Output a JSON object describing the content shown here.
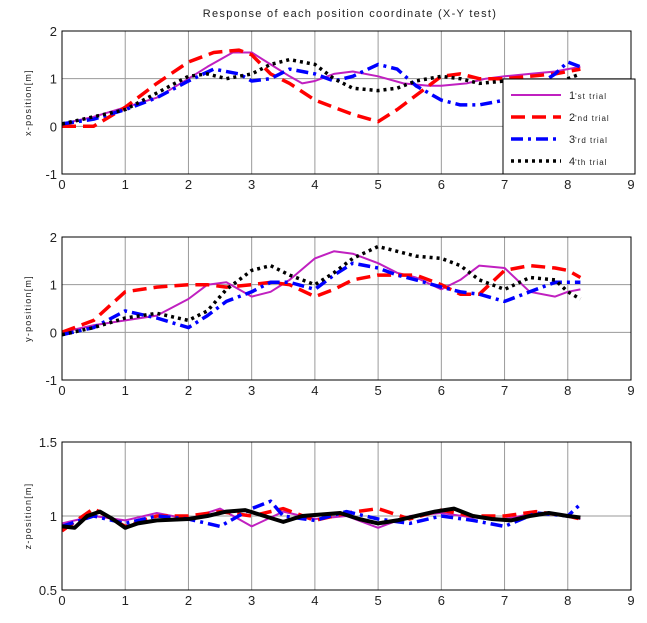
{
  "chart_data": [
    {
      "type": "line",
      "title": "Response of each position coordinate (X-Y test)",
      "ylabel": "x-position[m]",
      "xlim": [
        0,
        9
      ],
      "ylim": [
        -1,
        2
      ],
      "xticks": [
        0,
        1,
        2,
        3,
        4,
        5,
        6,
        7,
        8,
        9
      ],
      "yticks": [
        -1,
        0,
        1,
        2
      ],
      "grid": true,
      "legend": {
        "placement": "right",
        "entries": [
          {
            "main": "1",
            "sub": "'st trial"
          },
          {
            "main": "2",
            "sub": "'nd trial"
          },
          {
            "main": "3",
            "sub": "'rd trial"
          },
          {
            "main": "4",
            "sub": "'th trial"
          }
        ]
      },
      "series": [
        {
          "color": "#c020c0",
          "dash": "solid",
          "x": [
            0,
            0.5,
            1,
            1.5,
            2,
            2.3,
            2.7,
            3,
            3.3,
            3.6,
            3.8,
            4,
            4.3,
            4.6,
            5,
            5.4,
            5.8,
            6,
            6.4,
            6.7,
            7,
            7.4,
            7.8,
            8,
            8.2
          ],
          "y": [
            0.05,
            0.2,
            0.4,
            0.6,
            1.0,
            1.25,
            1.55,
            1.55,
            1.3,
            1.05,
            0.9,
            0.95,
            1.1,
            1.15,
            1.05,
            0.9,
            0.85,
            0.85,
            0.9,
            1.0,
            1.05,
            1.1,
            1.15,
            1.2,
            1.25
          ]
        },
        {
          "color": "#ff0000",
          "dash": "dash",
          "x": [
            0,
            0.5,
            1,
            1.5,
            2,
            2.4,
            2.8,
            3,
            3.3,
            3.6,
            4,
            4.3,
            4.6,
            5,
            5.3,
            5.7,
            6,
            6.3,
            6.6,
            7,
            7.4,
            7.8,
            8,
            8.2
          ],
          "y": [
            0.0,
            0.0,
            0.4,
            0.9,
            1.35,
            1.55,
            1.6,
            1.5,
            1.1,
            0.9,
            0.55,
            0.4,
            0.25,
            0.1,
            0.35,
            0.75,
            1.05,
            1.1,
            1.0,
            1.0,
            1.05,
            1.1,
            1.15,
            1.2
          ]
        },
        {
          "color": "#0000ff",
          "dash": "dashdot",
          "x": [
            0,
            0.5,
            1,
            1.5,
            2,
            2.4,
            2.8,
            3,
            3.3,
            3.6,
            4,
            4.3,
            4.6,
            5,
            5.3,
            5.6,
            6,
            6.3,
            6.6,
            7,
            7.4,
            7.8,
            8,
            8.2
          ],
          "y": [
            0.05,
            0.15,
            0.35,
            0.6,
            0.95,
            1.2,
            1.1,
            0.95,
            1.0,
            1.2,
            1.1,
            0.95,
            1.05,
            1.3,
            1.2,
            0.85,
            0.55,
            0.45,
            0.45,
            0.55,
            0.75,
            1.1,
            1.35,
            1.25
          ]
        },
        {
          "color": "#000000",
          "dash": "dot",
          "x": [
            0,
            0.5,
            1,
            1.5,
            2,
            2.3,
            2.6,
            3,
            3.3,
            3.6,
            4,
            4.3,
            4.6,
            5,
            5.3,
            5.6,
            6,
            6.3,
            6.6,
            7,
            7.4,
            7.8,
            8,
            8.2
          ],
          "y": [
            0.05,
            0.2,
            0.35,
            0.7,
            1.05,
            1.1,
            1.0,
            1.1,
            1.3,
            1.4,
            1.3,
            1.0,
            0.8,
            0.75,
            0.8,
            0.95,
            1.05,
            1.0,
            0.9,
            0.95,
            0.85,
            0.85,
            1.0,
            1.1
          ]
        }
      ]
    },
    {
      "type": "line",
      "ylabel": "y-position[m]",
      "xlim": [
        0,
        9
      ],
      "ylim": [
        -1,
        2
      ],
      "xticks": [
        0,
        1,
        2,
        3,
        4,
        5,
        6,
        7,
        8,
        9
      ],
      "yticks": [
        -1,
        0,
        1,
        2
      ],
      "grid": true,
      "series": [
        {
          "color": "#c020c0",
          "dash": "solid",
          "x": [
            0,
            0.5,
            1,
            1.5,
            2,
            2.3,
            2.6,
            3,
            3.3,
            3.6,
            4,
            4.3,
            4.6,
            5,
            5.3,
            5.6,
            6,
            6.3,
            6.6,
            7,
            7.4,
            7.8,
            8,
            8.2
          ],
          "y": [
            0.0,
            0.15,
            0.25,
            0.35,
            0.7,
            1.0,
            1.05,
            0.75,
            0.85,
            1.1,
            1.55,
            1.7,
            1.65,
            1.45,
            1.25,
            1.15,
            0.9,
            1.1,
            1.4,
            1.35,
            0.85,
            0.75,
            0.85,
            0.9
          ]
        },
        {
          "color": "#ff0000",
          "dash": "dash",
          "x": [
            0,
            0.5,
            1,
            1.5,
            2,
            2.3,
            2.6,
            3,
            3.3,
            3.6,
            4,
            4.3,
            4.6,
            5,
            5.3,
            5.6,
            6,
            6.3,
            6.6,
            7,
            7.4,
            7.8,
            8,
            8.2
          ],
          "y": [
            0.0,
            0.25,
            0.85,
            0.95,
            1.0,
            1.0,
            0.95,
            1.0,
            1.05,
            1.0,
            0.75,
            0.9,
            1.1,
            1.2,
            1.2,
            1.2,
            1.0,
            0.8,
            0.8,
            1.3,
            1.4,
            1.35,
            1.3,
            1.15
          ]
        },
        {
          "color": "#0000ff",
          "dash": "dashdot",
          "x": [
            0,
            0.5,
            1,
            1.5,
            2,
            2.3,
            2.6,
            3,
            3.3,
            3.6,
            4,
            4.3,
            4.6,
            5,
            5.3,
            5.6,
            6,
            6.3,
            6.6,
            7,
            7.4,
            7.8,
            8,
            8.2
          ],
          "y": [
            -0.05,
            0.1,
            0.45,
            0.3,
            0.1,
            0.35,
            0.65,
            0.85,
            1.05,
            1.05,
            0.9,
            1.2,
            1.45,
            1.35,
            1.2,
            1.1,
            0.95,
            0.85,
            0.8,
            0.65,
            0.85,
            1.05,
            1.05,
            1.05
          ]
        },
        {
          "color": "#000000",
          "dash": "dot",
          "x": [
            0,
            0.5,
            1,
            1.5,
            2,
            2.3,
            2.6,
            3,
            3.3,
            3.6,
            4,
            4.3,
            4.6,
            5,
            5.3,
            5.6,
            6,
            6.3,
            6.6,
            7,
            7.4,
            7.8,
            8,
            8.2
          ],
          "y": [
            -0.05,
            0.1,
            0.3,
            0.4,
            0.25,
            0.45,
            0.9,
            1.3,
            1.4,
            1.2,
            1.0,
            1.25,
            1.55,
            1.8,
            1.7,
            1.6,
            1.55,
            1.4,
            1.1,
            0.9,
            1.15,
            1.1,
            0.85,
            0.7
          ]
        }
      ]
    },
    {
      "type": "line",
      "ylabel": "z-position[m]",
      "xlim": [
        0,
        9
      ],
      "ylim": [
        0.5,
        1.5
      ],
      "xticks": [
        0,
        1,
        2,
        3,
        4,
        5,
        6,
        7,
        8,
        9
      ],
      "yticks": [
        0.5,
        1,
        1.5
      ],
      "grid": true,
      "series": [
        {
          "color": "#c020c0",
          "dash": "solid",
          "x": [
            0,
            0.5,
            1,
            1.5,
            2,
            2.5,
            3,
            3.5,
            4,
            4.5,
            5,
            5.5,
            6,
            6.5,
            7,
            7.5,
            8,
            8.2
          ],
          "y": [
            0.95,
            1.0,
            0.97,
            1.02,
            0.98,
            1.05,
            0.93,
            1.03,
            0.98,
            1.0,
            0.92,
            1.0,
            1.02,
            0.99,
            0.98,
            1.02,
            1.0,
            0.98
          ]
        },
        {
          "color": "#ff0000",
          "dash": "dash",
          "x": [
            0,
            0.5,
            1,
            1.5,
            2,
            2.5,
            3,
            3.5,
            4,
            4.5,
            5,
            5.5,
            6,
            6.5,
            7,
            7.5,
            8,
            8.2
          ],
          "y": [
            0.9,
            1.05,
            0.93,
            1.0,
            1.0,
            1.03,
            1.0,
            1.05,
            0.97,
            1.02,
            1.05,
            0.98,
            1.04,
            1.0,
            1.0,
            1.03,
            1.0,
            0.98
          ]
        },
        {
          "color": "#0000ff",
          "dash": "dashdot",
          "x": [
            0,
            0.5,
            1,
            1.5,
            2,
            2.5,
            3,
            3.3,
            3.5,
            4,
            4.5,
            5,
            5.5,
            6,
            6.5,
            7,
            7.5,
            8,
            8.2
          ],
          "y": [
            0.93,
            1.0,
            0.95,
            1.0,
            0.98,
            0.93,
            1.05,
            1.1,
            1.0,
            0.97,
            1.03,
            0.98,
            0.95,
            1.0,
            0.97,
            0.93,
            1.02,
            1.0,
            1.08
          ]
        },
        {
          "color": "#000000",
          "dash": "solid-thick",
          "x": [
            0,
            0.2,
            0.4,
            0.6,
            0.8,
            1,
            1.2,
            1.5,
            2,
            2.3,
            2.6,
            2.9,
            3.2,
            3.5,
            3.8,
            4.1,
            4.4,
            4.7,
            5,
            5.3,
            5.6,
            5.9,
            6.2,
            6.5,
            6.8,
            7.1,
            7.4,
            7.7,
            8,
            8.2
          ],
          "y": [
            0.93,
            0.92,
            1.0,
            1.03,
            0.98,
            0.92,
            0.95,
            0.97,
            0.98,
            1.0,
            1.03,
            1.04,
            1.0,
            0.96,
            1.0,
            1.01,
            1.02,
            0.98,
            0.95,
            0.97,
            1.0,
            1.03,
            1.05,
            1.0,
            0.98,
            0.97,
            1.0,
            1.02,
            1.0,
            0.99
          ]
        }
      ]
    }
  ]
}
